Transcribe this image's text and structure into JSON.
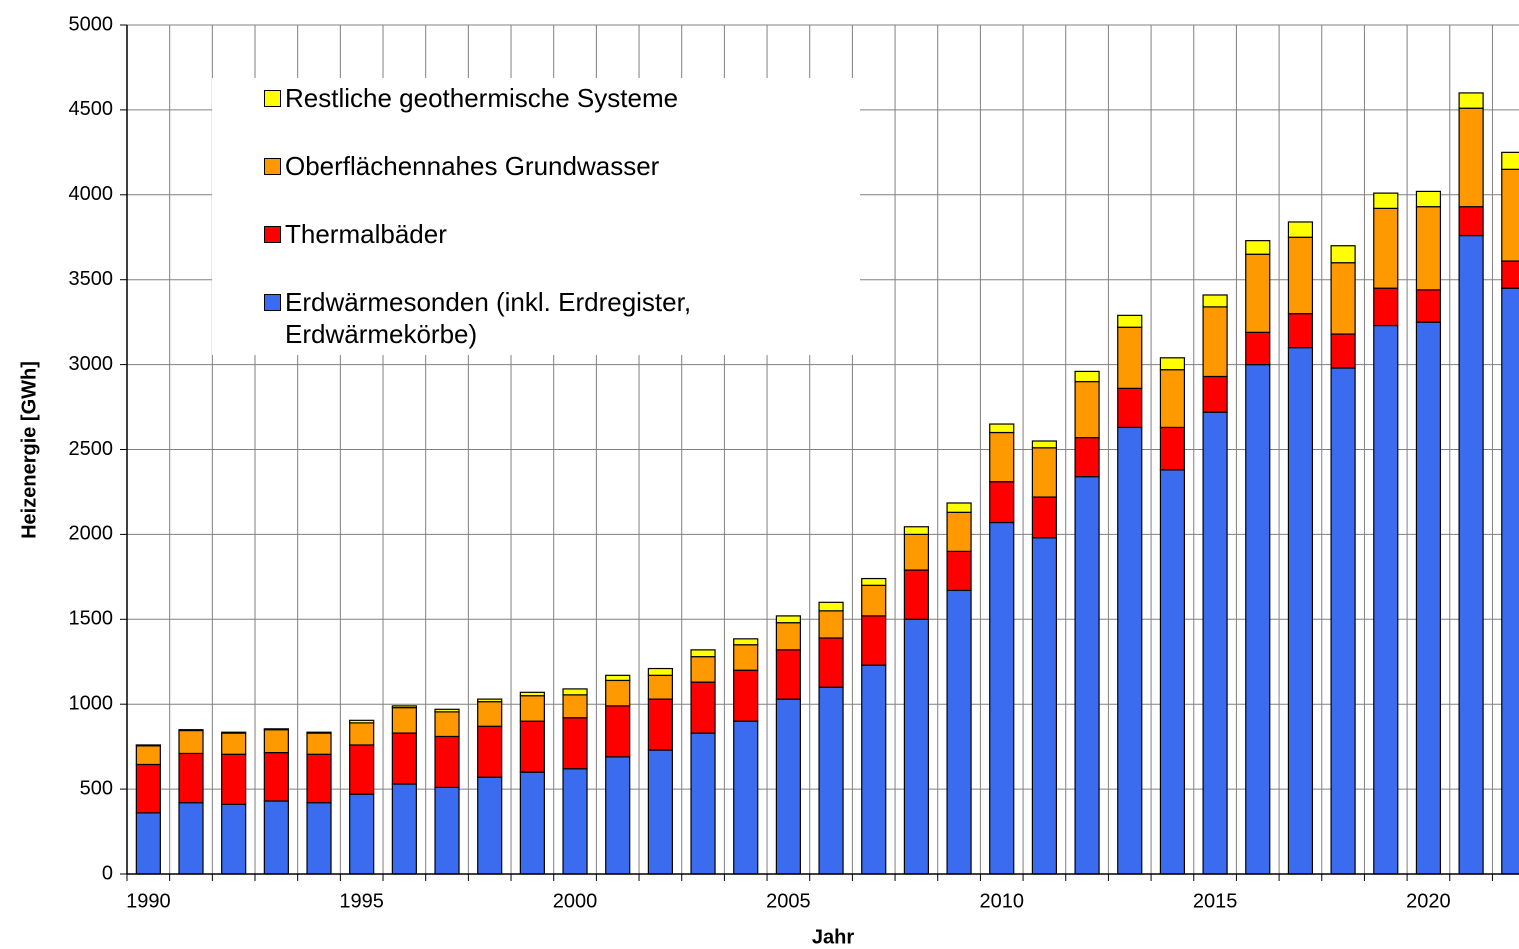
{
  "chart_data": {
    "type": "stacked_bar",
    "xlabel": "Jahr",
    "ylabel": "Heizenergie [GWh]",
    "categories": [
      "1990",
      null,
      null,
      null,
      null,
      "1995",
      null,
      null,
      null,
      null,
      "2000",
      null,
      null,
      null,
      null,
      "2005",
      null,
      null,
      null,
      null,
      "2010",
      null,
      null,
      null,
      null,
      "2015",
      null,
      null,
      null,
      null,
      "2020",
      null,
      null
    ],
    "series": [
      {
        "name": "Erdwärmesonden (inkl. Erdregister, Erdwärmekörbe)",
        "color": "#3b6cf0",
        "values": [
          360,
          420,
          410,
          430,
          420,
          470,
          530,
          510,
          570,
          600,
          620,
          690,
          730,
          830,
          900,
          1030,
          1100,
          1230,
          1500,
          1670,
          2070,
          1980,
          2340,
          2630,
          2380,
          2720,
          3000,
          3100,
          2980,
          3230,
          3250,
          3760,
          3450
        ]
      },
      {
        "name": "Thermalbäder",
        "color": "#ff0000",
        "values": [
          285,
          290,
          295,
          285,
          285,
          290,
          300,
          300,
          300,
          300,
          300,
          300,
          300,
          300,
          300,
          290,
          290,
          290,
          290,
          230,
          240,
          240,
          230,
          230,
          250,
          210,
          190,
          200,
          200,
          220,
          190,
          170,
          160
        ]
      },
      {
        "name": "Oberflächennahes Grundwasser",
        "color": "#ff9900",
        "values": [
          110,
          135,
          125,
          135,
          125,
          130,
          150,
          145,
          145,
          150,
          135,
          150,
          140,
          150,
          150,
          160,
          160,
          180,
          210,
          230,
          290,
          290,
          330,
          360,
          340,
          410,
          460,
          450,
          420,
          470,
          490,
          580,
          540
        ]
      },
      {
        "name": "Restliche geothermische Systeme",
        "color": "#ffff00",
        "values": [
          5,
          5,
          5,
          5,
          5,
          15,
          10,
          15,
          15,
          20,
          35,
          30,
          40,
          40,
          35,
          40,
          50,
          40,
          45,
          55,
          50,
          40,
          60,
          70,
          70,
          70,
          80,
          90,
          100,
          90,
          90,
          90,
          100
        ]
      }
    ],
    "ylim": [
      0,
      5000
    ],
    "yticks": [
      0,
      500,
      1000,
      1500,
      2000,
      2500,
      3000,
      3500,
      4000,
      4500,
      5000
    ],
    "grid": true,
    "legend": "upper left"
  }
}
